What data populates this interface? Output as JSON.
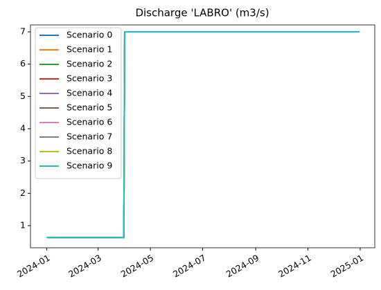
{
  "chart_data": {
    "type": "line",
    "title": "Discharge 'LABRO' (m3/s)",
    "x": [
      "2024-01-01",
      "2024-03-31",
      "2024-04-01",
      "2024-12-31"
    ],
    "series": [
      {
        "name": "Scenario 0",
        "color": "#1f77b4",
        "values": [
          0.63,
          0.63,
          7,
          7
        ]
      },
      {
        "name": "Scenario 1",
        "color": "#ff7f0e",
        "values": [
          0.63,
          0.63,
          7,
          7
        ]
      },
      {
        "name": "Scenario 2",
        "color": "#2ca02c",
        "values": [
          0.63,
          0.63,
          7,
          7
        ]
      },
      {
        "name": "Scenario 3",
        "color": "#d62728",
        "values": [
          0.63,
          0.63,
          7,
          7
        ]
      },
      {
        "name": "Scenario 4",
        "color": "#9467bd",
        "values": [
          0.63,
          0.63,
          7,
          7
        ]
      },
      {
        "name": "Scenario 5",
        "color": "#8c564b",
        "values": [
          0.63,
          0.63,
          7,
          7
        ]
      },
      {
        "name": "Scenario 6",
        "color": "#e377c2",
        "values": [
          0.63,
          0.63,
          7,
          7
        ]
      },
      {
        "name": "Scenario 7",
        "color": "#7f7f7f",
        "values": [
          0.63,
          0.63,
          7,
          7
        ]
      },
      {
        "name": "Scenario 8",
        "color": "#bcbd22",
        "values": [
          0.63,
          0.63,
          7,
          7
        ]
      },
      {
        "name": "Scenario 9",
        "color": "#17becf",
        "values": [
          0.63,
          0.63,
          7,
          7
        ]
      }
    ],
    "xlim": [
      "2023-12-13",
      "2025-01-18"
    ],
    "xticks": [
      {
        "value": "2024-01-01",
        "label": "2024-01"
      },
      {
        "value": "2024-03-01",
        "label": "2024-03"
      },
      {
        "value": "2024-05-01",
        "label": "2024-05"
      },
      {
        "value": "2024-07-01",
        "label": "2024-07"
      },
      {
        "value": "2024-09-01",
        "label": "2024-09"
      },
      {
        "value": "2024-11-01",
        "label": "2024-11"
      },
      {
        "value": "2025-01-01",
        "label": "2025-01"
      }
    ],
    "ylim": [
      0.314,
      7.214
    ],
    "yticks": [
      1,
      2,
      3,
      4,
      5,
      6,
      7
    ],
    "grid": false,
    "legend": "upper-left"
  }
}
